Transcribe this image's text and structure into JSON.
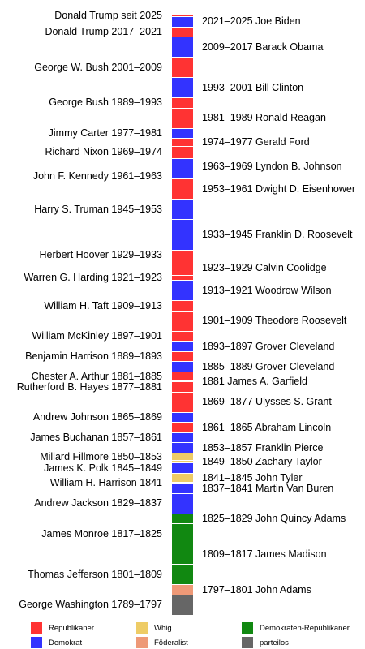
{
  "colors": {
    "rep": "#ff3333",
    "dem": "#3333ff",
    "whig": "#eecc66",
    "fed": "#ee9977",
    "dr": "#118811",
    "none": "#666666"
  },
  "presidents": [
    {
      "label": "Donald Trump seit 2025",
      "party": "rep",
      "start": 2025,
      "end": 2026,
      "side": "left"
    },
    {
      "label": "2021–2025 Joe Biden",
      "party": "dem",
      "start": 2021,
      "end": 2025,
      "side": "right"
    },
    {
      "label": "Donald Trump 2017–2021",
      "party": "rep",
      "start": 2017,
      "end": 2021,
      "side": "left"
    },
    {
      "label": "2009–2017 Barack Obama",
      "party": "dem",
      "start": 2009,
      "end": 2017,
      "side": "right"
    },
    {
      "label": "George W. Bush 2001–2009",
      "party": "rep",
      "start": 2001,
      "end": 2009,
      "side": "left"
    },
    {
      "label": "1993–2001 Bill Clinton",
      "party": "dem",
      "start": 1993,
      "end": 2001,
      "side": "right"
    },
    {
      "label": "George Bush 1989–1993",
      "party": "rep",
      "start": 1989,
      "end": 1993,
      "side": "left"
    },
    {
      "label": "1981–1989 Ronald Reagan",
      "party": "rep",
      "start": 1981,
      "end": 1989,
      "side": "right"
    },
    {
      "label": "Jimmy Carter 1977–1981",
      "party": "dem",
      "start": 1977,
      "end": 1981,
      "side": "left"
    },
    {
      "label": "1974–1977 Gerald Ford",
      "party": "rep",
      "start": 1974,
      "end": 1977,
      "side": "right"
    },
    {
      "label": "Richard Nixon 1969–1974",
      "party": "rep",
      "start": 1969,
      "end": 1974,
      "side": "left"
    },
    {
      "label": "1963–1969 Lyndon B. Johnson",
      "party": "dem",
      "start": 1963,
      "end": 1969,
      "side": "right"
    },
    {
      "label": "John F. Kennedy 1961–1963",
      "party": "dem",
      "start": 1961,
      "end": 1963,
      "side": "left"
    },
    {
      "label": "1953–1961 Dwight D. Eisenhower",
      "party": "rep",
      "start": 1953,
      "end": 1961,
      "side": "right"
    },
    {
      "label": "Harry S. Truman 1945–1953",
      "party": "dem",
      "start": 1945,
      "end": 1953,
      "side": "left"
    },
    {
      "label": "1933–1945 Franklin D. Roosevelt",
      "party": "dem",
      "start": 1933,
      "end": 1945,
      "side": "right"
    },
    {
      "label": "Herbert Hoover 1929–1933",
      "party": "rep",
      "start": 1929,
      "end": 1933,
      "side": "left"
    },
    {
      "label": "1923–1929 Calvin Coolidge",
      "party": "rep",
      "start": 1923,
      "end": 1929,
      "side": "right"
    },
    {
      "label": "Warren G. Harding 1921–1923",
      "party": "rep",
      "start": 1921,
      "end": 1923,
      "side": "left"
    },
    {
      "label": "1913–1921 Woodrow Wilson",
      "party": "dem",
      "start": 1913,
      "end": 1921,
      "side": "right"
    },
    {
      "label": "William H. Taft 1909–1913",
      "party": "rep",
      "start": 1909,
      "end": 1913,
      "side": "left"
    },
    {
      "label": "1901–1909 Theodore Roosevelt",
      "party": "rep",
      "start": 1901,
      "end": 1909,
      "side": "right"
    },
    {
      "label": "William McKinley 1897–1901",
      "party": "rep",
      "start": 1897,
      "end": 1901,
      "side": "left"
    },
    {
      "label": "1893–1897 Grover Cleveland",
      "party": "dem",
      "start": 1893,
      "end": 1897,
      "side": "right"
    },
    {
      "label": "Benjamin Harrison 1889–1893",
      "party": "rep",
      "start": 1889,
      "end": 1893,
      "side": "left"
    },
    {
      "label": "1885–1889 Grover Cleveland",
      "party": "dem",
      "start": 1885,
      "end": 1889,
      "side": "right"
    },
    {
      "label": "Chester A. Arthur 1881–1885",
      "party": "rep",
      "start": 1881,
      "end": 1885,
      "side": "left"
    },
    {
      "label": "1881 James A. Garfield",
      "party": "rep",
      "start": 1881,
      "end": 1881.5,
      "side": "right"
    },
    {
      "label": "Rutherford B. Hayes 1877–1881",
      "party": "rep",
      "start": 1877,
      "end": 1881,
      "side": "left"
    },
    {
      "label": "1869–1877 Ulysses S. Grant",
      "party": "rep",
      "start": 1869,
      "end": 1877,
      "side": "right"
    },
    {
      "label": "Andrew Johnson 1865–1869",
      "party": "dem",
      "start": 1865,
      "end": 1869,
      "side": "left"
    },
    {
      "label": "1861–1865 Abraham Lincoln",
      "party": "rep",
      "start": 1861,
      "end": 1865,
      "side": "right"
    },
    {
      "label": "James Buchanan 1857–1861",
      "party": "dem",
      "start": 1857,
      "end": 1861,
      "side": "left"
    },
    {
      "label": "1853–1857 Franklin Pierce",
      "party": "dem",
      "start": 1853,
      "end": 1857,
      "side": "right"
    },
    {
      "label": "Millard Fillmore 1850–1853",
      "party": "whig",
      "start": 1850,
      "end": 1853,
      "side": "left"
    },
    {
      "label": "1849–1850 Zachary Taylor",
      "party": "whig",
      "start": 1849,
      "end": 1850,
      "side": "right"
    },
    {
      "label": "James K. Polk 1845–1849",
      "party": "dem",
      "start": 1845,
      "end": 1849,
      "side": "left"
    },
    {
      "label": "1841–1845 John Tyler",
      "party": "whig",
      "start": 1841,
      "end": 1845,
      "side": "right"
    },
    {
      "label": "William H. Harrison 1841",
      "party": "whig",
      "start": 1841,
      "end": 1841.5,
      "side": "left"
    },
    {
      "label": "1837–1841 Martin Van Buren",
      "party": "dem",
      "start": 1837,
      "end": 1841,
      "side": "right"
    },
    {
      "label": "Andrew Jackson 1829–1837",
      "party": "dem",
      "start": 1829,
      "end": 1837,
      "side": "left"
    },
    {
      "label": "1825–1829 John Quincy Adams",
      "party": "dr",
      "start": 1825,
      "end": 1829,
      "side": "right"
    },
    {
      "label": "James Monroe 1817–1825",
      "party": "dr",
      "start": 1817,
      "end": 1825,
      "side": "left"
    },
    {
      "label": "1809–1817 James Madison",
      "party": "dr",
      "start": 1809,
      "end": 1817,
      "side": "right"
    },
    {
      "label": "Thomas Jefferson 1801–1809",
      "party": "dr",
      "start": 1801,
      "end": 1809,
      "side": "left"
    },
    {
      "label": "1797–1801 John Adams",
      "party": "fed",
      "start": 1797,
      "end": 1801,
      "side": "right"
    },
    {
      "label": "George Washington 1789–1797",
      "party": "none",
      "start": 1789,
      "end": 1797,
      "side": "left"
    }
  ],
  "legend": [
    {
      "party": "rep",
      "label": "Republikaner"
    },
    {
      "party": "whig",
      "label": "Whig"
    },
    {
      "party": "dr",
      "label": "Demokraten-Republikaner"
    },
    {
      "party": "dem",
      "label": "Demokrat"
    },
    {
      "party": "fed",
      "label": "Föderalist"
    },
    {
      "party": "none",
      "label": "parteilos"
    }
  ]
}
